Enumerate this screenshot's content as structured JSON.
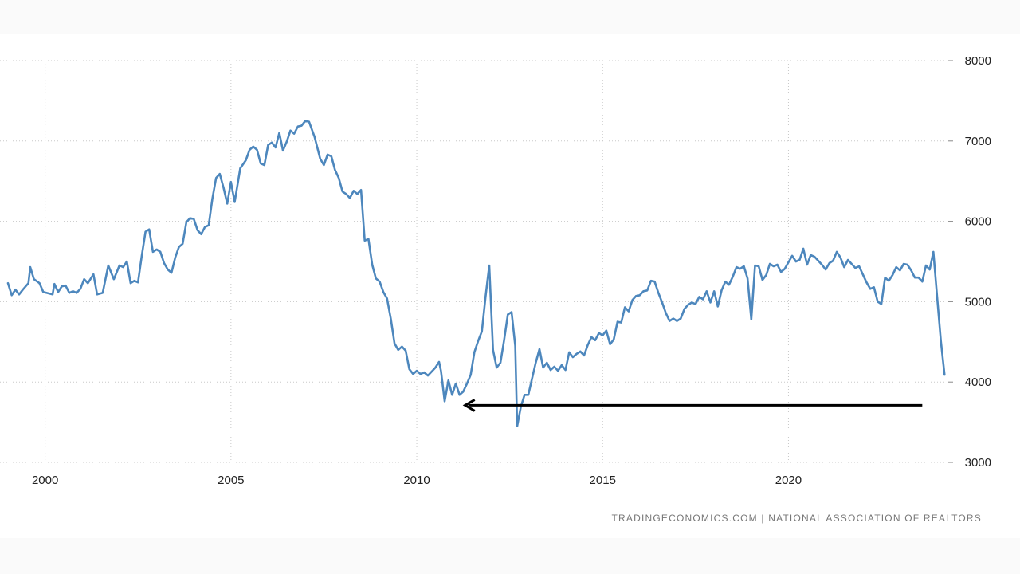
{
  "chart_data": {
    "type": "line",
    "title": "",
    "xlabel": "",
    "ylabel": "",
    "x_ticks": [
      "2000",
      "2005",
      "2010",
      "2015",
      "2020"
    ],
    "y_ticks": [
      "3000",
      "4000",
      "5000",
      "6000",
      "7000",
      "8000"
    ],
    "xlim": [
      1999.0,
      2024.3
    ],
    "ylim": [
      3000,
      8000
    ],
    "grid": true,
    "line_color": "#4d87bd",
    "source": "TRADINGECONOMICS.COM  |  NATIONAL ASSOCIATION OF REALTORS",
    "annotation": {
      "type": "arrow",
      "color": "#000000",
      "from": [
        2023.6,
        3710
      ],
      "to": [
        2011.3,
        3710
      ]
    },
    "series": [
      {
        "points": [
          [
            1999.0,
            5230
          ],
          [
            1999.1,
            5080
          ],
          [
            1999.2,
            5150
          ],
          [
            1999.3,
            5090
          ],
          [
            1999.4,
            5150
          ],
          [
            1999.55,
            5230
          ],
          [
            1999.6,
            5430
          ],
          [
            1999.7,
            5280
          ],
          [
            1999.85,
            5230
          ],
          [
            1999.95,
            5120
          ],
          [
            2000.2,
            5090
          ],
          [
            2000.25,
            5220
          ],
          [
            2000.35,
            5120
          ],
          [
            2000.45,
            5190
          ],
          [
            2000.55,
            5200
          ],
          [
            2000.65,
            5110
          ],
          [
            2000.75,
            5130
          ],
          [
            2000.85,
            5110
          ],
          [
            2000.95,
            5160
          ],
          [
            2001.05,
            5280
          ],
          [
            2001.15,
            5230
          ],
          [
            2001.3,
            5340
          ],
          [
            2001.4,
            5090
          ],
          [
            2001.55,
            5110
          ],
          [
            2001.7,
            5450
          ],
          [
            2001.85,
            5280
          ],
          [
            2002.0,
            5450
          ],
          [
            2002.1,
            5430
          ],
          [
            2002.2,
            5500
          ],
          [
            2002.3,
            5230
          ],
          [
            2002.4,
            5260
          ],
          [
            2002.5,
            5240
          ],
          [
            2002.6,
            5570
          ],
          [
            2002.7,
            5870
          ],
          [
            2002.8,
            5900
          ],
          [
            2002.9,
            5620
          ],
          [
            2003.0,
            5650
          ],
          [
            2003.1,
            5620
          ],
          [
            2003.2,
            5480
          ],
          [
            2003.3,
            5400
          ],
          [
            2003.4,
            5360
          ],
          [
            2003.5,
            5550
          ],
          [
            2003.6,
            5680
          ],
          [
            2003.7,
            5720
          ],
          [
            2003.8,
            5990
          ],
          [
            2003.9,
            6040
          ],
          [
            2004.0,
            6030
          ],
          [
            2004.1,
            5890
          ],
          [
            2004.2,
            5840
          ],
          [
            2004.3,
            5930
          ],
          [
            2004.4,
            5950
          ],
          [
            2004.5,
            6280
          ],
          [
            2004.6,
            6540
          ],
          [
            2004.7,
            6590
          ],
          [
            2004.8,
            6420
          ],
          [
            2004.9,
            6220
          ],
          [
            2005.0,
            6490
          ],
          [
            2005.1,
            6240
          ],
          [
            2005.25,
            6660
          ],
          [
            2005.4,
            6760
          ],
          [
            2005.5,
            6890
          ],
          [
            2005.6,
            6930
          ],
          [
            2005.7,
            6890
          ],
          [
            2005.8,
            6720
          ],
          [
            2005.9,
            6700
          ],
          [
            2006.0,
            6950
          ],
          [
            2006.1,
            6980
          ],
          [
            2006.2,
            6920
          ],
          [
            2006.3,
            7100
          ],
          [
            2006.4,
            6880
          ],
          [
            2006.5,
            6990
          ],
          [
            2006.6,
            7130
          ],
          [
            2006.7,
            7090
          ],
          [
            2006.8,
            7180
          ],
          [
            2006.9,
            7190
          ],
          [
            2007.0,
            7250
          ],
          [
            2007.1,
            7240
          ],
          [
            2007.25,
            7050
          ],
          [
            2007.4,
            6780
          ],
          [
            2007.5,
            6700
          ],
          [
            2007.6,
            6830
          ],
          [
            2007.7,
            6810
          ],
          [
            2007.8,
            6640
          ],
          [
            2007.9,
            6540
          ],
          [
            2008.0,
            6370
          ],
          [
            2008.1,
            6340
          ],
          [
            2008.2,
            6290
          ],
          [
            2008.3,
            6380
          ],
          [
            2008.4,
            6340
          ],
          [
            2008.5,
            6390
          ],
          [
            2008.6,
            5760
          ],
          [
            2008.7,
            5780
          ],
          [
            2008.8,
            5460
          ],
          [
            2008.9,
            5290
          ],
          [
            2009.0,
            5250
          ],
          [
            2009.1,
            5120
          ],
          [
            2009.2,
            5040
          ],
          [
            2009.3,
            4790
          ],
          [
            2009.4,
            4480
          ],
          [
            2009.5,
            4400
          ],
          [
            2009.6,
            4440
          ],
          [
            2009.7,
            4390
          ],
          [
            2009.8,
            4160
          ],
          [
            2009.9,
            4100
          ],
          [
            2010.0,
            4140
          ],
          [
            2010.1,
            4100
          ],
          [
            2010.2,
            4120
          ],
          [
            2010.3,
            4080
          ],
          [
            2010.4,
            4130
          ],
          [
            2010.5,
            4180
          ],
          [
            2010.6,
            4250
          ],
          [
            2010.65,
            4140
          ],
          [
            2010.75,
            3760
          ],
          [
            2010.85,
            4020
          ],
          [
            2010.95,
            3840
          ],
          [
            2011.05,
            3980
          ],
          [
            2011.15,
            3840
          ],
          [
            2011.25,
            3880
          ],
          [
            2011.35,
            3980
          ],
          [
            2011.45,
            4090
          ],
          [
            2011.55,
            4370
          ],
          [
            2011.65,
            4510
          ],
          [
            2011.75,
            4630
          ],
          [
            2011.85,
            5060
          ],
          [
            2011.95,
            5450
          ],
          [
            2012.05,
            4400
          ],
          [
            2012.15,
            4180
          ],
          [
            2012.25,
            4240
          ],
          [
            2012.35,
            4520
          ],
          [
            2012.45,
            4840
          ],
          [
            2012.55,
            4870
          ],
          [
            2012.65,
            4450
          ],
          [
            2012.7,
            3450
          ],
          [
            2012.8,
            3690
          ],
          [
            2012.9,
            3840
          ],
          [
            2013.0,
            3840
          ],
          [
            2013.1,
            4040
          ],
          [
            2013.2,
            4240
          ],
          [
            2013.3,
            4410
          ],
          [
            2013.4,
            4180
          ],
          [
            2013.5,
            4240
          ],
          [
            2013.6,
            4150
          ],
          [
            2013.7,
            4190
          ],
          [
            2013.8,
            4140
          ],
          [
            2013.9,
            4210
          ],
          [
            2014.0,
            4150
          ],
          [
            2014.1,
            4370
          ],
          [
            2014.2,
            4310
          ],
          [
            2014.3,
            4350
          ],
          [
            2014.4,
            4380
          ],
          [
            2014.5,
            4330
          ],
          [
            2014.6,
            4460
          ],
          [
            2014.7,
            4560
          ],
          [
            2014.8,
            4520
          ],
          [
            2014.9,
            4610
          ],
          [
            2015.0,
            4580
          ],
          [
            2015.1,
            4640
          ],
          [
            2015.2,
            4470
          ],
          [
            2015.3,
            4530
          ],
          [
            2015.4,
            4750
          ],
          [
            2015.5,
            4740
          ],
          [
            2015.6,
            4930
          ],
          [
            2015.7,
            4880
          ],
          [
            2015.8,
            5020
          ],
          [
            2015.9,
            5070
          ],
          [
            2016.0,
            5080
          ],
          [
            2016.1,
            5130
          ],
          [
            2016.2,
            5140
          ],
          [
            2016.3,
            5260
          ],
          [
            2016.4,
            5250
          ],
          [
            2016.5,
            5110
          ],
          [
            2016.6,
            4990
          ],
          [
            2016.7,
            4860
          ],
          [
            2016.8,
            4760
          ],
          [
            2016.9,
            4790
          ],
          [
            2017.0,
            4760
          ],
          [
            2017.1,
            4790
          ],
          [
            2017.2,
            4910
          ],
          [
            2017.3,
            4960
          ],
          [
            2017.4,
            4990
          ],
          [
            2017.5,
            4970
          ],
          [
            2017.6,
            5060
          ],
          [
            2017.7,
            5030
          ],
          [
            2017.8,
            5130
          ],
          [
            2017.9,
            4990
          ],
          [
            2018.0,
            5130
          ],
          [
            2018.1,
            4940
          ],
          [
            2018.2,
            5140
          ],
          [
            2018.3,
            5250
          ],
          [
            2018.4,
            5210
          ],
          [
            2018.5,
            5310
          ],
          [
            2018.6,
            5430
          ],
          [
            2018.7,
            5410
          ],
          [
            2018.8,
            5440
          ],
          [
            2018.9,
            5290
          ],
          [
            2019.0,
            4780
          ],
          [
            2019.1,
            5450
          ],
          [
            2019.2,
            5440
          ],
          [
            2019.3,
            5270
          ],
          [
            2019.4,
            5330
          ],
          [
            2019.5,
            5470
          ],
          [
            2019.6,
            5440
          ],
          [
            2019.7,
            5460
          ],
          [
            2019.8,
            5370
          ],
          [
            2019.9,
            5410
          ],
          [
            2020.0,
            5490
          ],
          [
            2020.1,
            5570
          ],
          [
            2020.2,
            5500
          ],
          [
            2020.3,
            5520
          ],
          [
            2020.4,
            5660
          ],
          [
            2020.5,
            5460
          ],
          [
            2020.6,
            5580
          ],
          [
            2020.7,
            5560
          ],
          [
            2020.8,
            5510
          ],
          [
            2020.9,
            5460
          ],
          [
            2021.0,
            5400
          ],
          [
            2021.1,
            5480
          ],
          [
            2021.2,
            5510
          ],
          [
            2021.3,
            5620
          ],
          [
            2021.4,
            5550
          ],
          [
            2021.5,
            5430
          ],
          [
            2021.6,
            5520
          ],
          [
            2021.7,
            5470
          ],
          [
            2021.8,
            5420
          ],
          [
            2021.9,
            5440
          ],
          [
            2022.0,
            5340
          ],
          [
            2022.1,
            5240
          ],
          [
            2022.2,
            5160
          ],
          [
            2022.3,
            5180
          ],
          [
            2022.4,
            5000
          ],
          [
            2022.5,
            4970
          ],
          [
            2022.6,
            5300
          ],
          [
            2022.7,
            5260
          ],
          [
            2022.8,
            5330
          ],
          [
            2022.9,
            5430
          ],
          [
            2023.0,
            5390
          ],
          [
            2023.1,
            5470
          ],
          [
            2023.2,
            5460
          ],
          [
            2023.3,
            5390
          ],
          [
            2023.4,
            5300
          ],
          [
            2023.5,
            5300
          ],
          [
            2023.6,
            5250
          ],
          [
            2023.7,
            5450
          ],
          [
            2023.8,
            5400
          ],
          [
            2023.9,
            5620
          ],
          [
            2024.0,
            5060
          ],
          [
            2024.1,
            4510
          ],
          [
            2024.2,
            4090
          ]
        ]
      }
    ]
  }
}
